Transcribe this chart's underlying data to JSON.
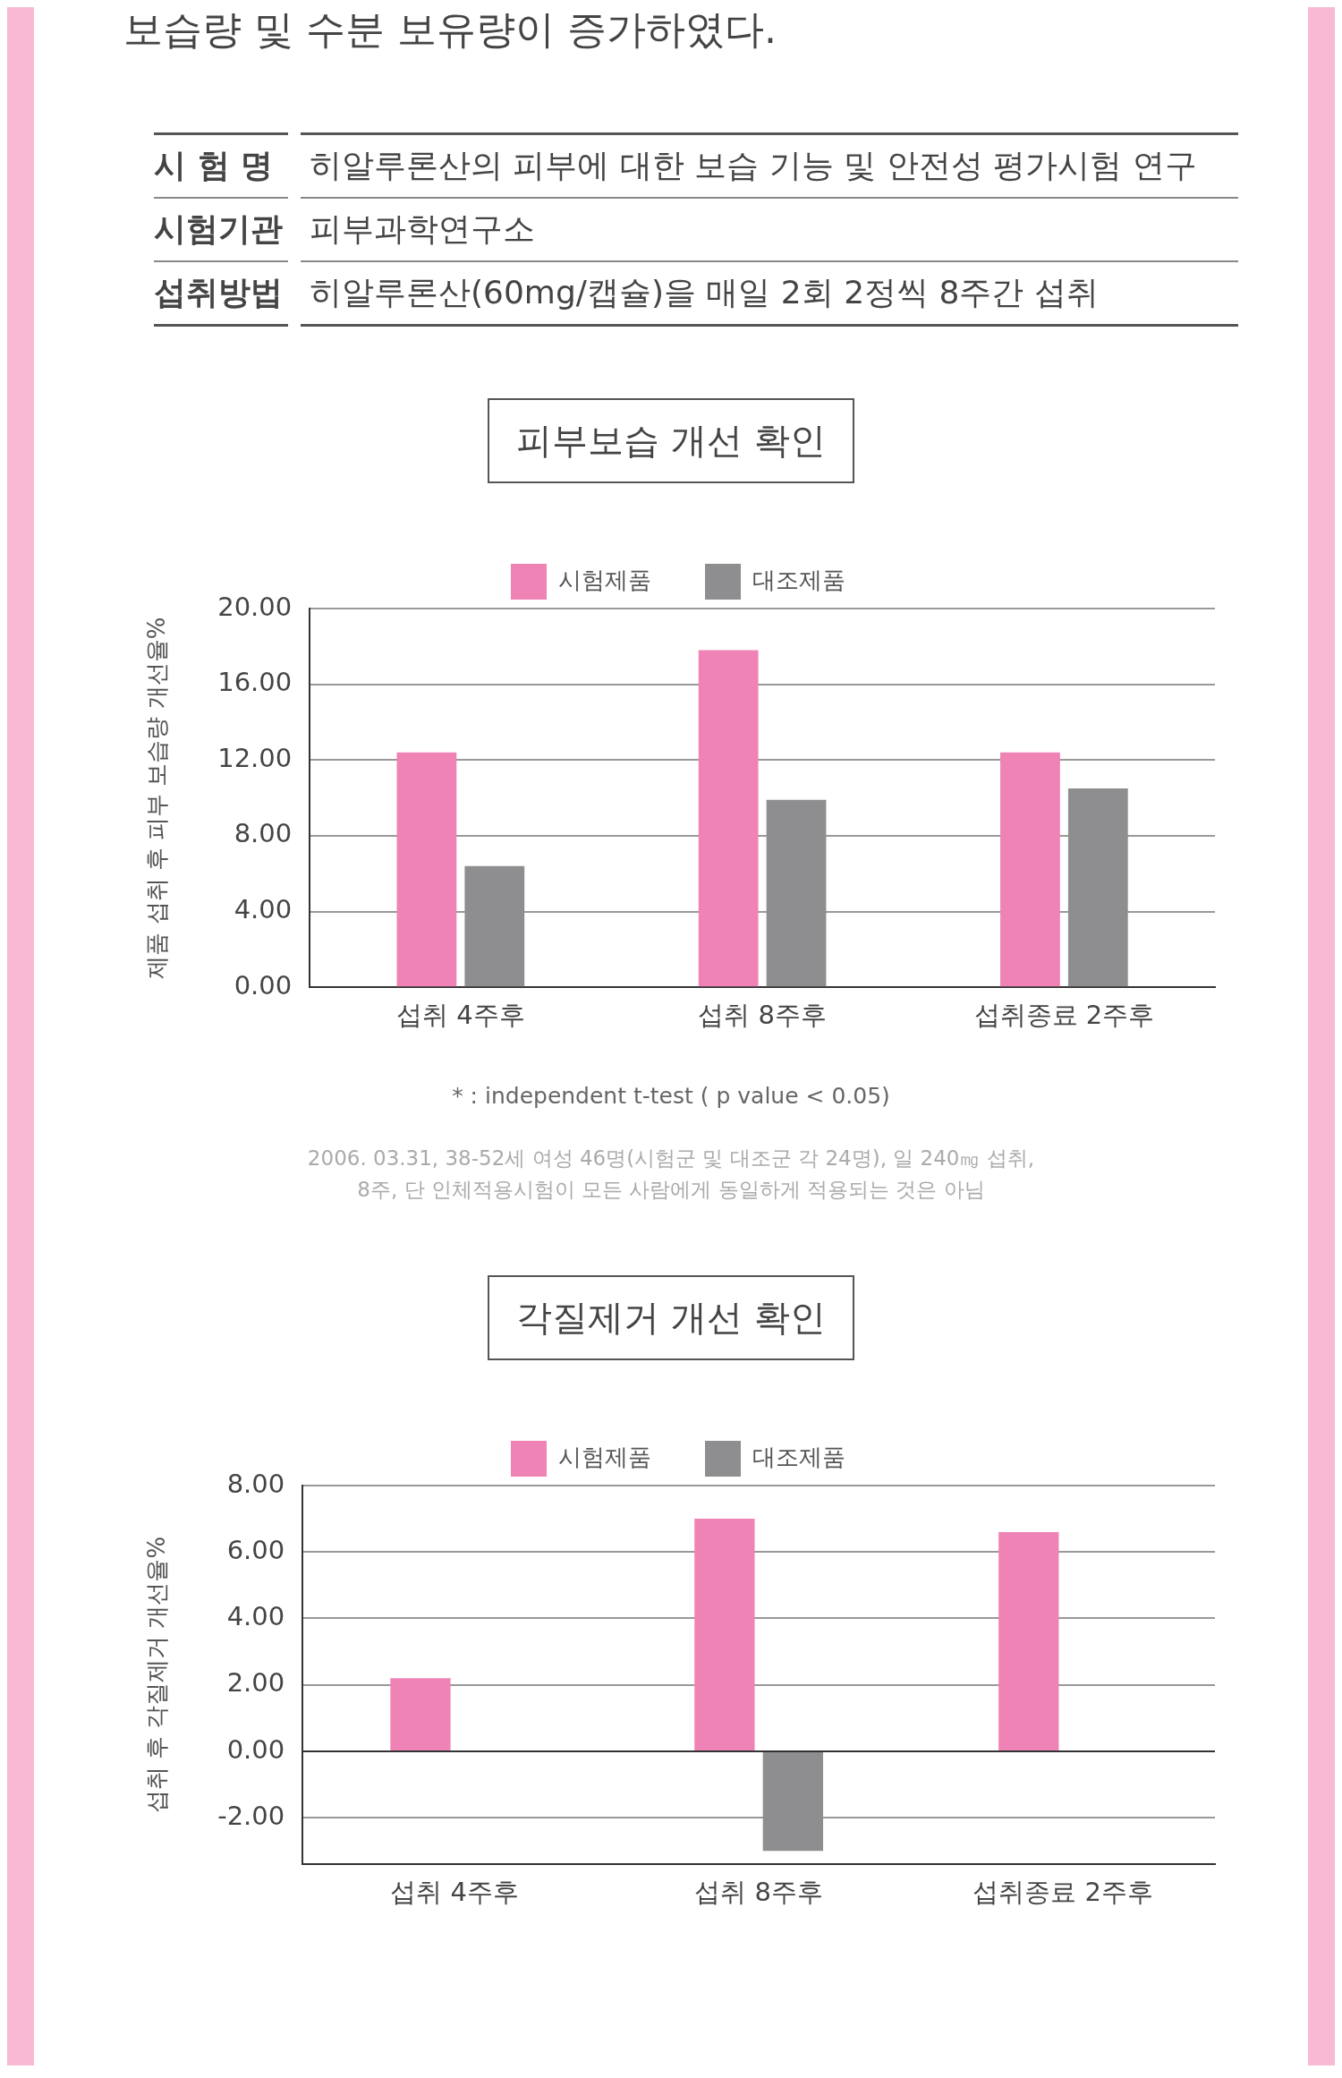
{
  "chart_data": [
    {
      "type": "other",
      "annotations": [
        "보습량 및 수분 보유량이 증가하였다.",
        "시 험 명",
        "히알루론산의 피부에 대한 보습 기능 및 안전성 평가시험 연구",
        "시험기관",
        "피부과학연구소",
        "섭취방법",
        "히알루론산(60mg/캡슐)을 매일 2회 2정씩 8주간 섭취"
      ]
    },
    {
      "type": "bar",
      "title": "피부보습 개선 확인",
      "ylabel": "제품 섭취 후 피부 보습량 개선율%",
      "categories": [
        "섭취 4주후",
        "섭취 8주후",
        "섭취종료 2주후"
      ],
      "series": [
        {
          "name": "시험제품",
          "color": "#f083b5",
          "values": [
            12.4,
            17.8,
            12.4
          ]
        },
        {
          "name": "대조제품",
          "color": "#8e8e90",
          "values": [
            6.4,
            9.9,
            10.5
          ]
        }
      ],
      "ylim": [
        0,
        20
      ],
      "yticks": [
        {
          "value": 0,
          "label": "0.00"
        },
        {
          "value": 4,
          "label": "4.00"
        },
        {
          "value": 8,
          "label": "8.00"
        },
        {
          "value": 12,
          "label": "12.00"
        },
        {
          "value": 16,
          "label": "16.00"
        },
        {
          "value": 20,
          "label": "20.00"
        }
      ],
      "grid": "y",
      "legend": "top",
      "annotations": [
        "* : independent t-test ( p value < 0.05)",
        "2006. 03.31, 38-52세 여성 46명(시험군 및 대조군 각 24명), 일 240㎎ 섭취,",
        "8주, 단 인체적용시험이 모든 사람에게 동일하게 적용되는 것은 아님"
      ]
    },
    {
      "type": "bar",
      "title": "각질제거 개선 확인",
      "ylabel": "섭취 후 각질제거 개선율%",
      "categories": [
        "섭취 4주후",
        "섭취 8주후",
        "섭취종료 2주후"
      ],
      "series": [
        {
          "name": "시험제품",
          "color": "#f083b5",
          "values": [
            2.2,
            7.0,
            6.6
          ]
        },
        {
          "name": "대조제품",
          "color": "#8e8e90",
          "values": [
            null,
            -3,
            null
          ]
        }
      ],
      "ylim": [
        -3.4,
        8
      ],
      "yticks": [
        {
          "value": -2,
          "label": "-2.00"
        },
        {
          "value": 0,
          "label": "0.00"
        },
        {
          "value": 2,
          "label": "2.00"
        },
        {
          "value": 4,
          "label": "4.00"
        },
        {
          "value": 6,
          "label": "6.00"
        },
        {
          "value": 8,
          "label": "8.00"
        }
      ],
      "grid": "y",
      "legend": "top"
    }
  ]
}
